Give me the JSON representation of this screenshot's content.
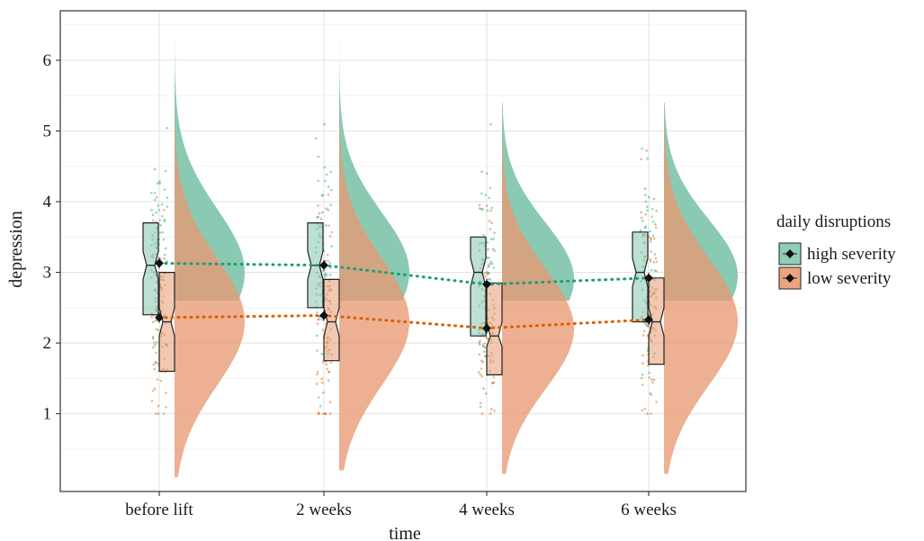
{
  "chart_data": {
    "type": "raincloud",
    "xlabel": "time",
    "ylabel": "depression",
    "categories": [
      "before lift",
      "2 weeks",
      "4 weeks",
      "6 weeks"
    ],
    "ylim": [
      -0.1,
      6.7
    ],
    "yticks": [
      1,
      2,
      3,
      4,
      5,
      6
    ],
    "grid": true,
    "legend": {
      "title": "daily disruptions",
      "position": "right",
      "entries": [
        "high severity",
        "low severity"
      ]
    },
    "series": [
      {
        "name": "high severity",
        "color": "#1b9e77",
        "fill": "#85c7ae",
        "means": [
          3.13,
          3.1,
          2.83,
          2.92
        ],
        "boxes": [
          {
            "q1": 2.4,
            "median": 3.1,
            "q3": 3.7,
            "notch_low": 2.9,
            "notch_high": 3.3
          },
          {
            "q1": 2.5,
            "median": 3.1,
            "q3": 3.7,
            "notch_low": 2.9,
            "notch_high": 3.3
          },
          {
            "q1": 2.1,
            "median": 3.0,
            "q3": 3.5,
            "notch_low": 2.8,
            "notch_high": 3.2
          },
          {
            "q1": 2.3,
            "median": 3.0,
            "q3": 3.57,
            "notch_low": 2.8,
            "notch_high": 3.2
          }
        ],
        "densities": [
          {
            "min": 2.6,
            "max": 6.35,
            "mode": 3.0,
            "sd": 0.9
          },
          {
            "min": 2.6,
            "max": 6.3,
            "mode": 3.0,
            "sd": 0.85
          },
          {
            "min": 2.6,
            "max": 5.4,
            "mode": 2.9,
            "sd": 0.8
          },
          {
            "min": 2.6,
            "max": 5.4,
            "mode": 2.95,
            "sd": 0.8
          }
        ]
      },
      {
        "name": "low severity",
        "color": "#d95f02",
        "fill": "#e89a73",
        "means": [
          2.36,
          2.39,
          2.21,
          2.33
        ],
        "boxes": [
          {
            "q1": 1.6,
            "median": 2.3,
            "q3": 3.0,
            "notch_low": 2.1,
            "notch_high": 2.5
          },
          {
            "q1": 1.75,
            "median": 2.3,
            "q3": 2.9,
            "notch_low": 2.1,
            "notch_high": 2.5
          },
          {
            "q1": 1.55,
            "median": 2.1,
            "q3": 2.85,
            "notch_low": 1.95,
            "notch_high": 2.3
          },
          {
            "q1": 1.7,
            "median": 2.3,
            "q3": 2.92,
            "notch_low": 2.1,
            "notch_high": 2.5
          }
        ],
        "densities": [
          {
            "min": 0.1,
            "max": 5.4,
            "mode": 2.3,
            "sd": 0.9
          },
          {
            "min": 0.2,
            "max": 5.25,
            "mode": 2.3,
            "sd": 0.9
          },
          {
            "min": 0.15,
            "max": 4.85,
            "mode": 2.2,
            "sd": 0.85
          },
          {
            "min": 0.15,
            "max": 5.1,
            "mode": 2.3,
            "sd": 0.9
          }
        ]
      }
    ]
  }
}
